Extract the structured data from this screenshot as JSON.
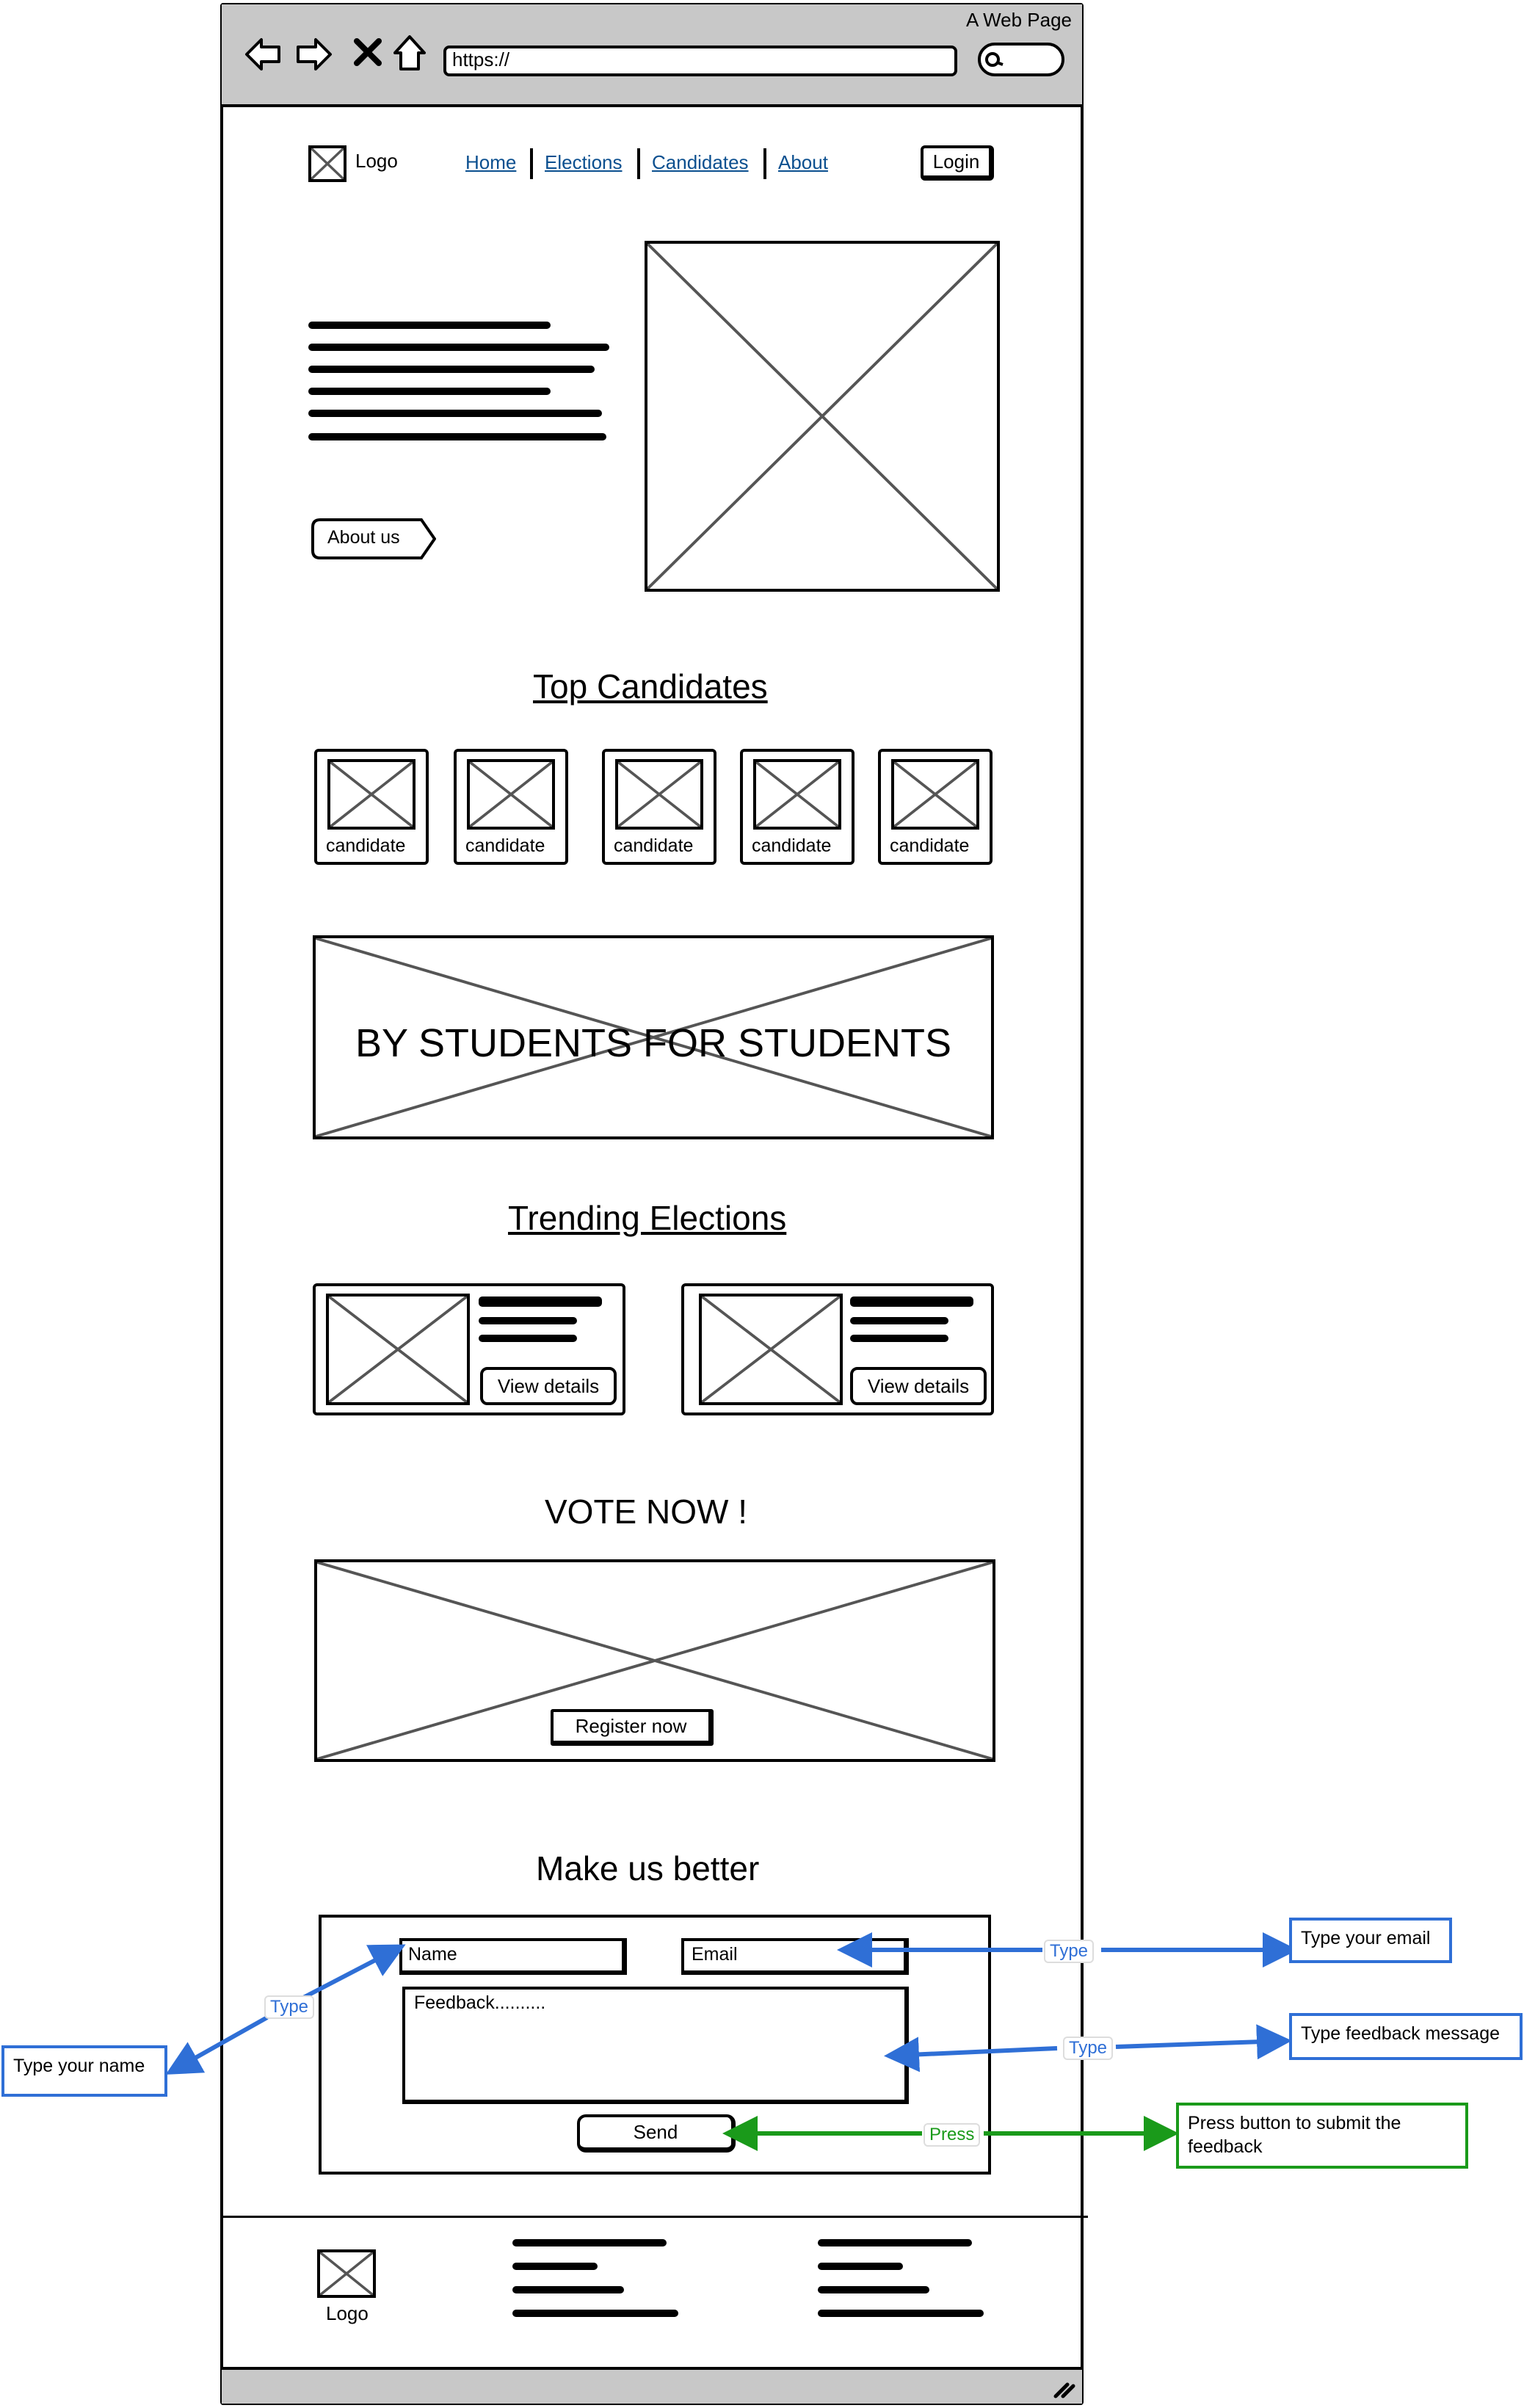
{
  "browser": {
    "title": "A Web Page",
    "url": "https://"
  },
  "header": {
    "logo_label": "Logo",
    "nav": [
      "Home",
      "Elections",
      "Candidates",
      "About"
    ],
    "login_label": "Login"
  },
  "hero": {
    "about_button": "About us"
  },
  "top_candidates": {
    "heading": "Top Candidates",
    "cards": [
      "candidate",
      "candidate",
      "candidate",
      "candidate",
      "candidate"
    ]
  },
  "banner": {
    "text": "BY STUDENTS FOR STUDENTS"
  },
  "trending": {
    "heading": "Trending Elections",
    "cards": [
      {
        "button": "View details"
      },
      {
        "button": "View details"
      }
    ]
  },
  "vote": {
    "heading": "VOTE NOW !",
    "register_button": "Register now"
  },
  "feedback": {
    "heading": "Make us better",
    "name_placeholder": "Name",
    "email_placeholder": "Email",
    "message_placeholder": "Feedback..........",
    "send_button": "Send"
  },
  "footer": {
    "logo_label": "Logo"
  },
  "annotations": {
    "name_note": "Type your name",
    "email_note": "Type your email",
    "message_note": "Type feedback message",
    "send_note": "Press button to submit the feedback",
    "type_tag": "Type",
    "press_tag": "Press",
    "type_color": "#2f6fd6",
    "press_color": "#1a9a1a"
  }
}
